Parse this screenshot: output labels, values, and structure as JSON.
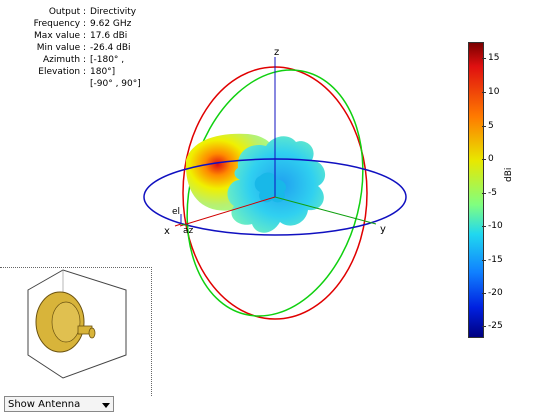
{
  "info": {
    "rows": [
      {
        "key": "Output :",
        "value": "Directivity"
      },
      {
        "key": "Frequency :",
        "value": "9.62 GHz"
      },
      {
        "key": "Max value :",
        "value": "17.6 dBi"
      },
      {
        "key": "Min value :",
        "value": "-26.4 dBi"
      },
      {
        "key": "Azimuth :",
        "value": "[-180° ,"
      },
      {
        "key": "Elevation :",
        "value": "180°]"
      },
      {
        "key": "",
        "value": "[-90° , 90°]"
      }
    ]
  },
  "axes": {
    "z": "z",
    "x": "x",
    "y": "y",
    "el": "el",
    "az": "az"
  },
  "colorbar": {
    "unit": "dBi",
    "ticks": [
      "15",
      "10",
      "5",
      "0",
      "-5",
      "-10",
      "-15",
      "-20",
      "-25"
    ],
    "max": 17.6,
    "min": -26.4,
    "colors": [
      "#7a0000",
      "#e01010",
      "#ff7a00",
      "#e8e800",
      "#80ff80",
      "#20d8f0",
      "#1080ff",
      "#0020e0",
      "#000080"
    ]
  },
  "controls": {
    "antenna_select": "Show Antenna"
  }
}
